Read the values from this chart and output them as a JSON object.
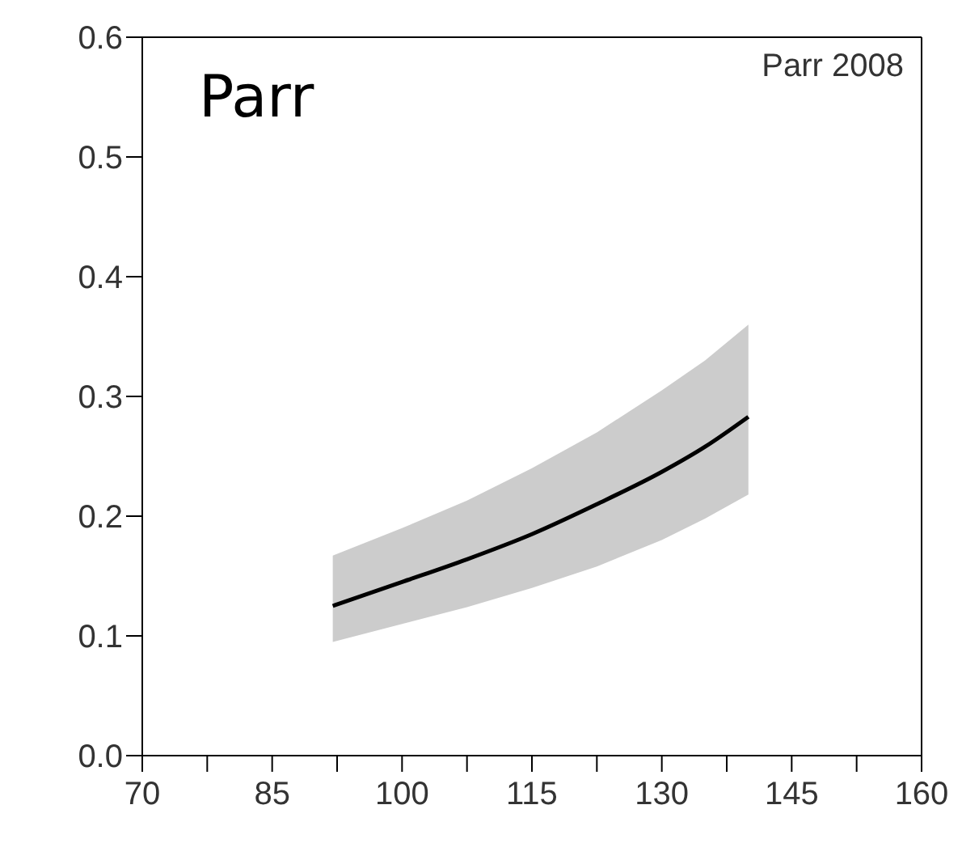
{
  "chart_data": {
    "type": "line",
    "annotations": [
      "Parr",
      "Parr 2008"
    ],
    "x": [
      92,
      100,
      107.5,
      115,
      122.5,
      130,
      135,
      140
    ],
    "series": [
      {
        "color": "#000000",
        "values": [
          0.125,
          0.145,
          0.164,
          0.185,
          0.21,
          0.237,
          0.258,
          0.283
        ],
        "lower": [
          0.095,
          0.11,
          0.124,
          0.14,
          0.158,
          0.18,
          0.198,
          0.218
        ],
        "upper": [
          0.167,
          0.19,
          0.213,
          0.24,
          0.27,
          0.305,
          0.33,
          0.36
        ]
      }
    ],
    "xlim": [
      70,
      160
    ],
    "xticks": [
      70,
      {
        "value": 77.5,
        "label": null
      },
      85,
      {
        "value": 92.5,
        "label": null
      },
      100,
      {
        "value": 107.5,
        "label": null
      },
      115,
      {
        "value": 122.5,
        "label": null
      },
      130,
      {
        "value": 137.5,
        "label": null
      },
      145,
      {
        "value": 152.5,
        "label": null
      },
      160
    ],
    "ylim": [
      0,
      0.6
    ],
    "yticks": [
      {
        "value": 0,
        "label": "0.0"
      },
      {
        "value": 0.1,
        "label": "0.1"
      },
      {
        "value": 0.2,
        "label": "0.2"
      },
      {
        "value": 0.3,
        "label": "0.3"
      },
      {
        "value": 0.4,
        "label": "0.4"
      },
      {
        "value": 0.5,
        "label": "0.5"
      },
      {
        "value": 0.6,
        "label": "0.6"
      }
    ],
    "grid": false,
    "legend": false,
    "marker": "none",
    "line_style": "solid"
  }
}
